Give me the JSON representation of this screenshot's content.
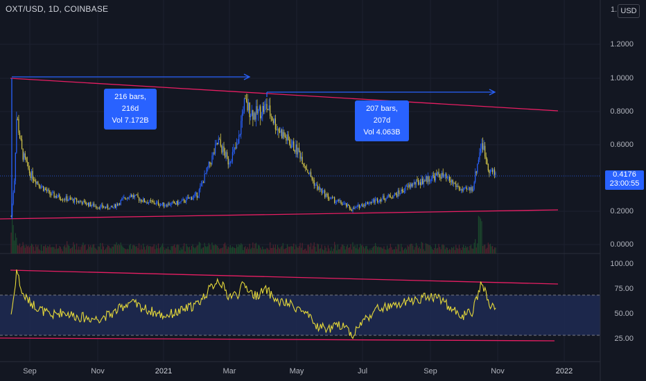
{
  "header": {
    "symbol_title": "OXT/USD, 1D, COINBASE",
    "currency_button": "USD",
    "axis_top_cut_label": "1."
  },
  "price_axis": {
    "labels": [
      "1.2000",
      "1.0000",
      "0.8000",
      "0.6000",
      "0.2000",
      "0.0000"
    ]
  },
  "rsi_axis": {
    "labels": [
      "100.00",
      "75.00",
      "50.00",
      "25.00"
    ]
  },
  "time_axis": {
    "labels": [
      "Sep",
      "Nov",
      "2021",
      "Mar",
      "May",
      "Jul",
      "Sep",
      "Nov",
      "2022"
    ]
  },
  "last_price": {
    "value": "0.4176",
    "countdown": "23:00:55"
  },
  "measurements": [
    {
      "bars": "216 bars, 216d",
      "volume": "Vol 7.172B"
    },
    {
      "bars": "207 bars, 207d",
      "volume": "Vol 4.063B"
    }
  ],
  "colors": {
    "background": "#131722",
    "up_candle": "#2962ff",
    "down_candle": "#d4c74a",
    "trendline": "#e91e63",
    "rsi_line": "#e6d93a",
    "measure": "#2962ff",
    "rsi_band": "#1e2a52"
  },
  "chart_data": {
    "type": "candlestick",
    "symbol": "OXT/USD",
    "interval": "1D",
    "exchange": "COINBASE",
    "price_ylim": [
      0,
      1.3
    ],
    "rsi_ylim": [
      20,
      100
    ],
    "rsi_levels": [
      70,
      30
    ],
    "price_series": {
      "name": "OXT/USD",
      "dates": [
        "2020-08-15",
        "2020-08-18",
        "2020-08-20",
        "2020-08-25",
        "2020-09-01",
        "2020-09-10",
        "2020-09-20",
        "2020-10-01",
        "2020-10-15",
        "2020-11-01",
        "2020-11-15",
        "2020-12-01",
        "2020-12-15",
        "2021-01-01",
        "2021-01-15",
        "2021-02-01",
        "2021-02-10",
        "2021-02-20",
        "2021-03-01",
        "2021-03-10",
        "2021-03-15",
        "2021-03-25",
        "2021-04-05",
        "2021-04-15",
        "2021-04-25",
        "2021-05-05",
        "2021-05-12",
        "2021-05-20",
        "2021-06-01",
        "2021-06-15",
        "2021-06-22",
        "2021-07-01",
        "2021-07-15",
        "2021-08-01",
        "2021-08-15",
        "2021-09-01",
        "2021-09-10",
        "2021-09-20",
        "2021-10-01",
        "2021-10-10",
        "2021-10-18",
        "2021-10-25",
        "2021-10-31"
      ],
      "close": [
        0.17,
        0.4,
        0.78,
        0.55,
        0.43,
        0.36,
        0.3,
        0.28,
        0.26,
        0.23,
        0.22,
        0.3,
        0.26,
        0.24,
        0.25,
        0.3,
        0.45,
        0.62,
        0.5,
        0.6,
        0.85,
        0.78,
        0.83,
        0.7,
        0.62,
        0.55,
        0.45,
        0.35,
        0.28,
        0.24,
        0.21,
        0.24,
        0.27,
        0.3,
        0.36,
        0.4,
        0.42,
        0.38,
        0.32,
        0.34,
        0.62,
        0.45,
        0.42
      ]
    },
    "rsi_series": {
      "name": "RSI",
      "values": [
        50,
        72,
        95,
        70,
        62,
        55,
        48,
        52,
        47,
        45,
        50,
        62,
        55,
        48,
        52,
        60,
        72,
        85,
        68,
        70,
        80,
        68,
        74,
        62,
        60,
        55,
        48,
        38,
        35,
        40,
        28,
        42,
        55,
        58,
        63,
        68,
        66,
        55,
        48,
        52,
        82,
        60,
        52
      ]
    },
    "annotations": [
      {
        "type": "date_price_range",
        "label": "216 bars, 216d",
        "volume": "Vol 7.172B"
      },
      {
        "type": "date_price_range",
        "label": "207 bars, 207d",
        "volume": "Vol 4.063B"
      }
    ]
  }
}
